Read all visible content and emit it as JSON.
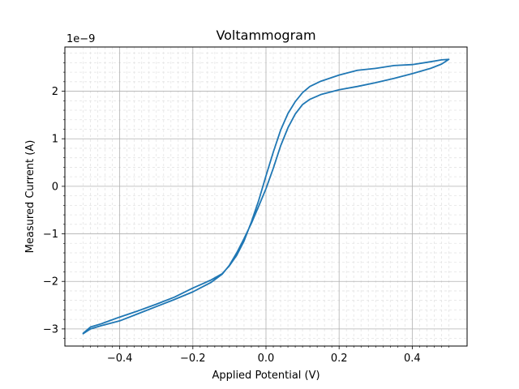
{
  "chart_data": {
    "type": "line",
    "title": "Voltammogram",
    "xlabel": "Applied Potential (V)",
    "ylabel": "Measured Current (A)",
    "y_offset_text": "1e−9",
    "y_multiplier": 1e-09,
    "xlim": [
      -0.55,
      0.55
    ],
    "ylim": [
      -3.36,
      2.93
    ],
    "grid": {
      "major": true,
      "minor": true
    },
    "x_ticks": [
      {
        "value": -0.4,
        "label": "−0.4"
      },
      {
        "value": -0.2,
        "label": "−0.2"
      },
      {
        "value": 0.0,
        "label": "0.0"
      },
      {
        "value": 0.2,
        "label": "0.2"
      },
      {
        "value": 0.4,
        "label": "0.4"
      }
    ],
    "y_ticks": [
      {
        "value": -3,
        "label": "−3"
      },
      {
        "value": -2,
        "label": "−2"
      },
      {
        "value": -1,
        "label": "−1"
      },
      {
        "value": 0,
        "label": "0"
      },
      {
        "value": 1,
        "label": "1"
      },
      {
        "value": 2,
        "label": "2"
      }
    ],
    "series": [
      {
        "color": "#1f77b4",
        "x": [
          -0.5,
          -0.48,
          -0.45,
          -0.4,
          -0.35,
          -0.3,
          -0.25,
          -0.2,
          -0.15,
          -0.12,
          -0.1,
          -0.08,
          -0.06,
          -0.04,
          -0.02,
          0.0,
          0.02,
          0.04,
          0.06,
          0.08,
          0.1,
          0.12,
          0.15,
          0.2,
          0.25,
          0.3,
          0.35,
          0.4,
          0.45,
          0.48,
          0.5,
          0.48,
          0.45,
          0.4,
          0.35,
          0.3,
          0.25,
          0.2,
          0.15,
          0.12,
          0.1,
          0.08,
          0.06,
          0.04,
          0.02,
          0.0,
          -0.02,
          -0.04,
          -0.06,
          -0.08,
          -0.1,
          -0.12,
          -0.15,
          -0.2,
          -0.25,
          -0.3,
          -0.35,
          -0.4,
          -0.45,
          -0.48,
          -0.5
        ],
        "y": [
          -3.1,
          -3.0,
          -2.93,
          -2.83,
          -2.68,
          -2.53,
          -2.38,
          -2.22,
          -2.02,
          -1.85,
          -1.66,
          -1.4,
          -1.1,
          -0.78,
          -0.42,
          -0.05,
          0.38,
          0.85,
          1.23,
          1.52,
          1.72,
          1.83,
          1.93,
          2.03,
          2.1,
          2.18,
          2.27,
          2.37,
          2.48,
          2.57,
          2.67,
          2.66,
          2.62,
          2.56,
          2.54,
          2.48,
          2.44,
          2.34,
          2.21,
          2.1,
          1.97,
          1.78,
          1.53,
          1.18,
          0.72,
          0.22,
          -0.3,
          -0.75,
          -1.15,
          -1.45,
          -1.67,
          -1.84,
          -1.97,
          -2.14,
          -2.33,
          -2.48,
          -2.62,
          -2.75,
          -2.89,
          -2.96,
          -3.09
        ]
      }
    ]
  }
}
